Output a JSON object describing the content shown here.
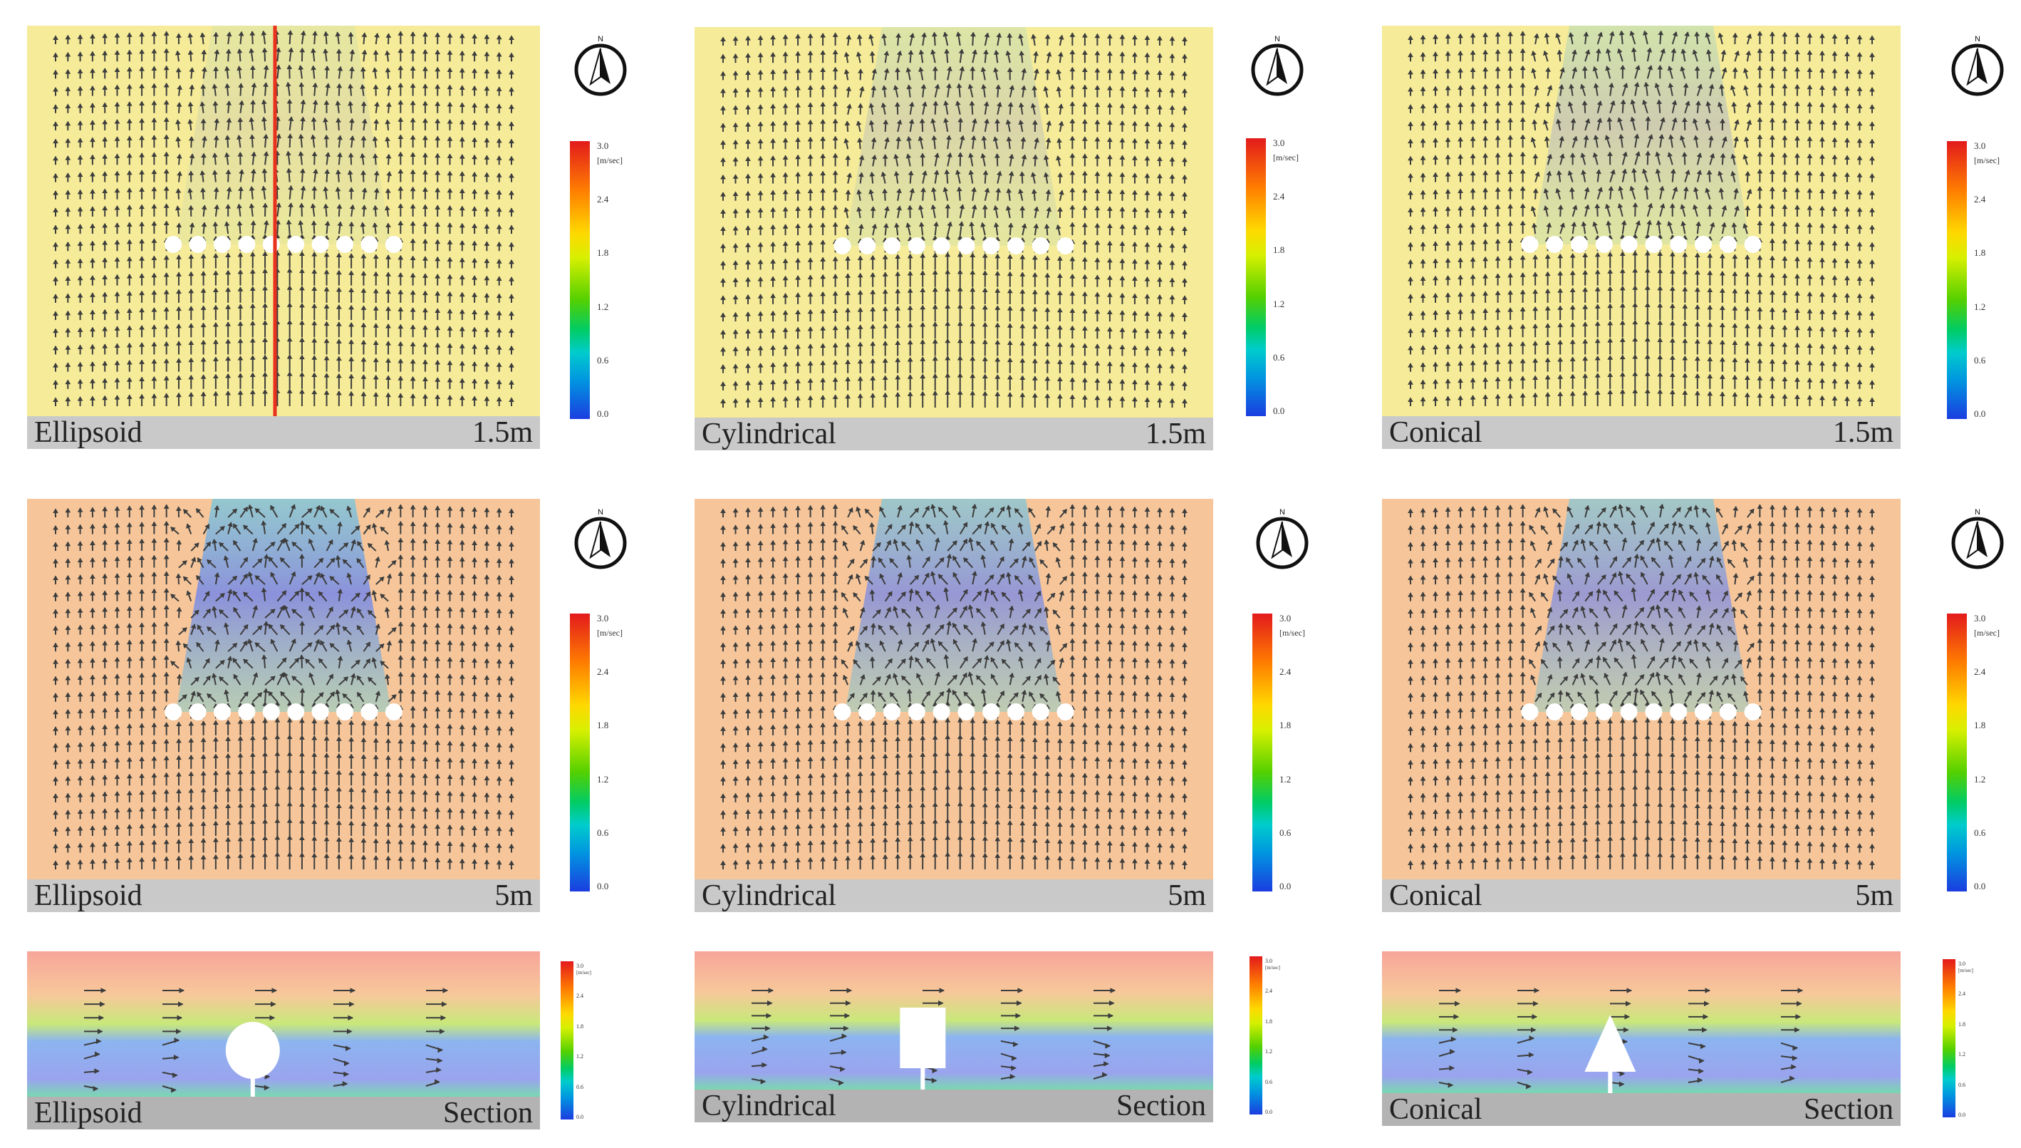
{
  "figure": {
    "panels": [
      {
        "id": "ellipsoid-1.5m",
        "shape": "Ellipsoid",
        "height": "1.5m",
        "type": "plan",
        "background": "#f5eb98",
        "wake_strength": 0.15
      },
      {
        "id": "cylindrical-1.5m",
        "shape": "Cylindrical",
        "height": "1.5m",
        "type": "plan",
        "background": "#f5eb98",
        "wake_strength": 0.25
      },
      {
        "id": "conical-1.5m",
        "shape": "Conical",
        "height": "1.5m",
        "type": "plan",
        "background": "#f5eb98",
        "wake_strength": 0.35
      },
      {
        "id": "ellipsoid-5m",
        "shape": "Ellipsoid",
        "height": "5m",
        "type": "plan",
        "background": "#f6c69a",
        "wake_strength": 0.95
      },
      {
        "id": "cylindrical-5m",
        "shape": "Cylindrical",
        "height": "5m",
        "type": "plan",
        "background": "#f6c69a",
        "wake_strength": 0.85
      },
      {
        "id": "conical-5m",
        "shape": "Conical",
        "height": "5m",
        "type": "plan",
        "background": "#f6c69a",
        "wake_strength": 0.8
      },
      {
        "id": "ellipsoid-section",
        "shape": "Ellipsoid",
        "height": "Section",
        "type": "section"
      },
      {
        "id": "cylindrical-section",
        "shape": "Cylindrical",
        "height": "Section",
        "type": "section"
      },
      {
        "id": "conical-section",
        "shape": "Conical",
        "height": "Section",
        "type": "section"
      }
    ]
  },
  "compass": {
    "label": "N"
  },
  "legend": {
    "unit": "[m/sec]",
    "ticks": [
      "3.0",
      "2.4",
      "1.8",
      "1.2",
      "0.6",
      "0.0"
    ],
    "colors": [
      "#e31a1c",
      "#ff7f00",
      "#ffd800",
      "#55d000",
      "#00cccc",
      "#1b3de0"
    ]
  },
  "marker": {
    "color": "#e8321e"
  }
}
